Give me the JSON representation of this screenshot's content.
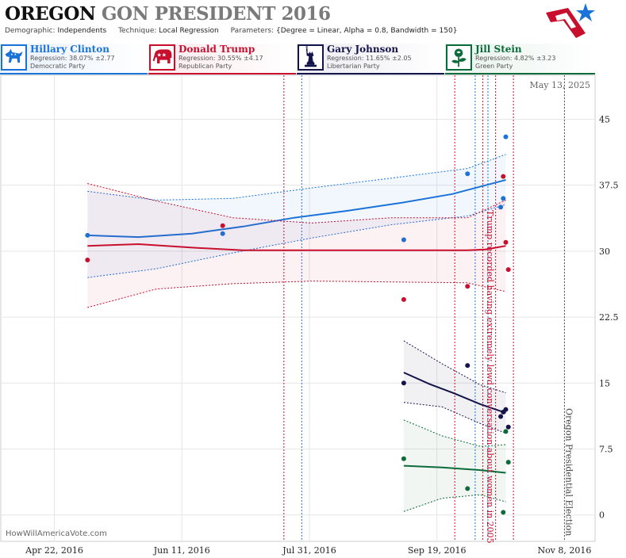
{
  "header": {
    "title_state": "OREGON",
    "title_rest": "GON PRESIDENT 2016",
    "demographic_label": "Demographic:",
    "demographic_value": "Independents",
    "technique_label": "Technique:",
    "technique_value": "Local Regression",
    "parameters_label": "Parameters:",
    "parameters_value": "{Degree = Linear, Alpha = 0.8, Bandwidth = 150}"
  },
  "candidates": [
    {
      "name": "Hillary Clinton",
      "regression": "Regression: 38.07% ±2.77",
      "party": "Democratic Party",
      "color": "#1a73d9",
      "bg": "#e8f0fb",
      "icon": "donkey-icon"
    },
    {
      "name": "Donald Trump",
      "regression": "Regression: 30.55% ±4.17",
      "party": "Republican Party",
      "color": "#c8102e",
      "bg": "#fbe9ec",
      "icon": "elephant-icon"
    },
    {
      "name": "Gary Johnson",
      "regression": "Regression: 11.65% ±2.05",
      "party": "Libertarian Party",
      "color": "#14144a",
      "bg": "#ebebf2",
      "icon": "statue-of-liberty-icon"
    },
    {
      "name": "Jill Stein",
      "regression": "Regression: 4.82% ±3.23",
      "party": "Green Party",
      "color": "#0b6b3a",
      "bg": "#e7f2ec",
      "icon": "rose-icon"
    }
  ],
  "watermark": "HowWillAmericaVote.com",
  "chart_data": {
    "type": "line",
    "date_label": "May 13, 2025",
    "x_ticks": [
      "Apr 22, 2016",
      "Jun 11, 2016",
      "Jul 31, 2016",
      "Sep 19, 2016",
      "Nov 8, 2016"
    ],
    "x_range": [
      "2016-04-01",
      "2016-11-20"
    ],
    "y_ticks": [
      0,
      7.5,
      15,
      22.5,
      30,
      37.5,
      45
    ],
    "y_tick_labels": [
      "0",
      "7.5",
      "15",
      "22.5",
      "30",
      "37.5",
      "45"
    ],
    "ylim": [
      -3,
      50
    ],
    "grid": true,
    "annotations": [
      {
        "text": "Trump recorded having extremely lewd conversation about women in 2005",
        "date": "2016-10-08",
        "color": "#c8102e"
      },
      {
        "text": "Oregon Presidential Election",
        "date": "2016-11-08",
        "color": "#444444"
      }
    ],
    "event_lines": [
      {
        "date": "2016-07-21",
        "color": "#c8102e"
      },
      {
        "date": "2016-07-28",
        "color": "#1a73d9"
      },
      {
        "date": "2016-09-26",
        "color": "#c8102e"
      },
      {
        "date": "2016-10-04",
        "color": "#1a73d9"
      },
      {
        "date": "2016-10-07",
        "color": "#c8102e"
      },
      {
        "date": "2016-10-09",
        "color": "#1a73d9"
      },
      {
        "date": "2016-10-12",
        "color": "#c8102e"
      },
      {
        "date": "2016-10-19",
        "color": "#c8102e"
      }
    ],
    "series": [
      {
        "name": "Hillary Clinton",
        "color": "#1a73d9",
        "points": [
          [
            "2016-05-05",
            31.8
          ],
          [
            "2016-06-27",
            32.0
          ],
          [
            "2016-09-06",
            31.3
          ],
          [
            "2016-10-01",
            38.8
          ],
          [
            "2016-10-14",
            35.0
          ],
          [
            "2016-10-15",
            36.0
          ],
          [
            "2016-10-16",
            43.0
          ]
        ],
        "fit": [
          [
            "2016-05-05",
            31.8
          ],
          [
            "2016-05-25",
            31.6
          ],
          [
            "2016-06-15",
            32.0
          ],
          [
            "2016-07-05",
            32.8
          ],
          [
            "2016-07-25",
            33.8
          ],
          [
            "2016-08-15",
            34.6
          ],
          [
            "2016-09-05",
            35.5
          ],
          [
            "2016-09-25",
            36.5
          ],
          [
            "2016-10-16",
            38.1
          ]
        ],
        "upper": [
          [
            "2016-05-05",
            36.8
          ],
          [
            "2016-06-01",
            35.8
          ],
          [
            "2016-07-01",
            36.0
          ],
          [
            "2016-08-01",
            37.2
          ],
          [
            "2016-09-01",
            38.3
          ],
          [
            "2016-10-01",
            39.4
          ],
          [
            "2016-10-16",
            41.0
          ]
        ],
        "lower": [
          [
            "2016-05-05",
            27.0
          ],
          [
            "2016-06-01",
            28.0
          ],
          [
            "2016-07-01",
            29.8
          ],
          [
            "2016-08-01",
            31.5
          ],
          [
            "2016-09-01",
            33.0
          ],
          [
            "2016-10-01",
            34.0
          ],
          [
            "2016-10-16",
            35.3
          ]
        ]
      },
      {
        "name": "Donald Trump",
        "color": "#c8102e",
        "points": [
          [
            "2016-05-05",
            29.0
          ],
          [
            "2016-06-27",
            32.9
          ],
          [
            "2016-09-06",
            24.5
          ],
          [
            "2016-10-01",
            26.0
          ],
          [
            "2016-10-15",
            38.5
          ],
          [
            "2016-10-16",
            31.0
          ],
          [
            "2016-10-17",
            27.9
          ]
        ],
        "fit": [
          [
            "2016-05-05",
            30.6
          ],
          [
            "2016-05-25",
            30.8
          ],
          [
            "2016-06-15",
            30.4
          ],
          [
            "2016-07-05",
            30.1
          ],
          [
            "2016-08-01",
            30.1
          ],
          [
            "2016-09-01",
            30.1
          ],
          [
            "2016-10-01",
            30.1
          ],
          [
            "2016-10-08",
            30.2
          ],
          [
            "2016-10-16",
            30.6
          ]
        ],
        "upper": [
          [
            "2016-05-05",
            37.7
          ],
          [
            "2016-06-01",
            35.7
          ],
          [
            "2016-07-01",
            33.8
          ],
          [
            "2016-08-01",
            33.2
          ],
          [
            "2016-09-01",
            33.8
          ],
          [
            "2016-10-01",
            33.8
          ],
          [
            "2016-10-16",
            35.8
          ]
        ],
        "lower": [
          [
            "2016-05-05",
            23.6
          ],
          [
            "2016-06-01",
            25.7
          ],
          [
            "2016-07-01",
            26.3
          ],
          [
            "2016-08-01",
            26.6
          ],
          [
            "2016-09-01",
            26.5
          ],
          [
            "2016-10-01",
            26.4
          ],
          [
            "2016-10-16",
            25.4
          ]
        ]
      },
      {
        "name": "Gary Johnson",
        "color": "#14144a",
        "points": [
          [
            "2016-09-06",
            15.0
          ],
          [
            "2016-10-01",
            17.0
          ],
          [
            "2016-10-14",
            11.2
          ],
          [
            "2016-10-15",
            11.7
          ],
          [
            "2016-10-16",
            12.0
          ],
          [
            "2016-10-17",
            10.0
          ]
        ],
        "fit": [
          [
            "2016-09-06",
            16.2
          ],
          [
            "2016-09-16",
            14.9
          ],
          [
            "2016-09-26",
            13.8
          ],
          [
            "2016-10-06",
            12.6
          ],
          [
            "2016-10-16",
            11.6
          ]
        ],
        "upper": [
          [
            "2016-09-06",
            19.8
          ],
          [
            "2016-09-21",
            17.2
          ],
          [
            "2016-10-06",
            14.8
          ],
          [
            "2016-10-16",
            13.9
          ]
        ],
        "lower": [
          [
            "2016-09-06",
            12.8
          ],
          [
            "2016-09-21",
            12.3
          ],
          [
            "2016-10-06",
            10.4
          ],
          [
            "2016-10-16",
            9.3
          ]
        ]
      },
      {
        "name": "Jill Stein",
        "color": "#0b6b3a",
        "points": [
          [
            "2016-09-06",
            6.4
          ],
          [
            "2016-10-01",
            3.0
          ],
          [
            "2016-10-15",
            0.3
          ],
          [
            "2016-10-16",
            9.5
          ],
          [
            "2016-10-17",
            6.0
          ]
        ],
        "fit": [
          [
            "2016-09-06",
            5.6
          ],
          [
            "2016-09-21",
            5.4
          ],
          [
            "2016-10-06",
            5.1
          ],
          [
            "2016-10-16",
            4.8
          ]
        ],
        "upper": [
          [
            "2016-09-06",
            10.8
          ],
          [
            "2016-09-21",
            9.0
          ],
          [
            "2016-10-06",
            7.8
          ],
          [
            "2016-10-16",
            8.0
          ]
        ],
        "lower": [
          [
            "2016-09-06",
            0.4
          ],
          [
            "2016-09-21",
            1.9
          ],
          [
            "2016-10-06",
            2.3
          ],
          [
            "2016-10-16",
            1.5
          ]
        ]
      }
    ]
  }
}
